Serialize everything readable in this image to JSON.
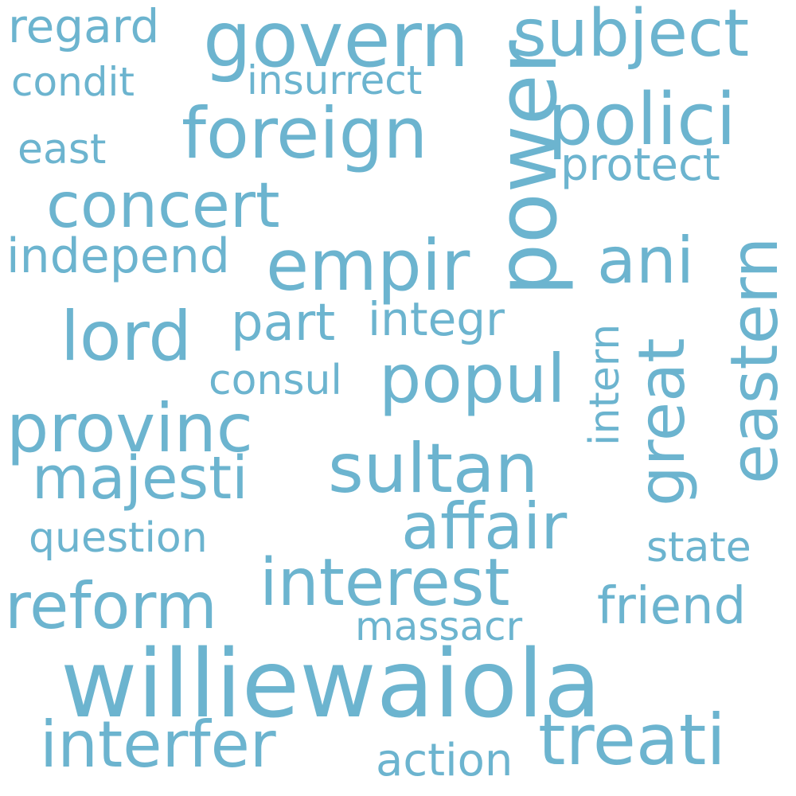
{
  "style": {
    "background": "#ffffff",
    "word_color": "#6cb4cf"
  },
  "words": {
    "williewaiola": "williewaiola",
    "power": "power",
    "govern": "govern",
    "subject": "subject",
    "foreign": "foreign",
    "empir": "empir",
    "sultan": "sultan",
    "concert": "concert",
    "polici": "polici",
    "eastern": "eastern",
    "lord": "lord",
    "popul": "popul",
    "provinc": "provinc",
    "majesti": "majesti",
    "affair": "affair",
    "interest": "interest",
    "reform": "reform",
    "interfer": "interfer",
    "treati": "treati",
    "great": "great",
    "ani": "ani",
    "independ": "independ",
    "part": "part",
    "integr": "integr",
    "protect": "protect",
    "regard": "regard",
    "insurrect": "insurrect",
    "condit": "condit",
    "east": "east",
    "consul": "consul",
    "intern": "intern",
    "question": "question",
    "state": "state",
    "friend": "friend",
    "massacr": "massacr",
    "action": "action"
  }
}
